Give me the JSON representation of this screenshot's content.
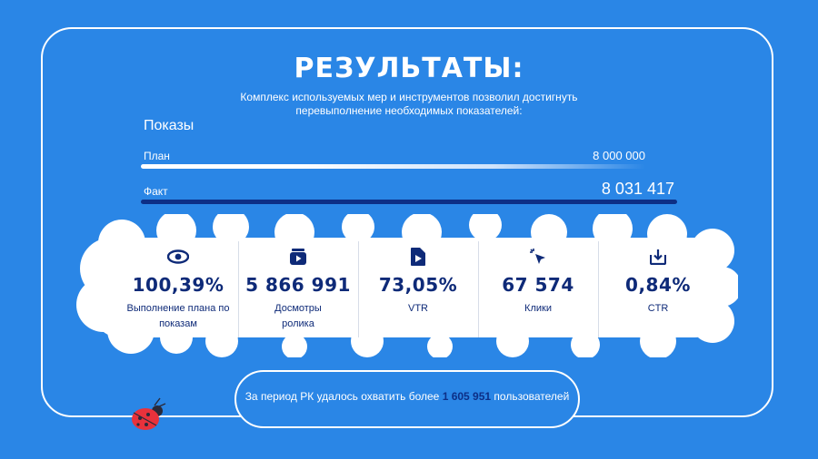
{
  "title": "РЕЗУЛЬТАТЫ:",
  "subtitle_line1": "Комплекс используемых мер и инструментов позволил достигнуть",
  "subtitle_line2": "перевыполнение необходимых показателей:",
  "impressions": {
    "label": "Показы",
    "plan_label": "План",
    "plan_value": "8 000 000",
    "fact_label": "Факт",
    "fact_value": "8 031 417"
  },
  "stats": [
    {
      "icon": "eye-icon",
      "value": "100,39%",
      "caption_line1": "Выполнение плана по",
      "caption_line2": "показам"
    },
    {
      "icon": "video-play-icon",
      "value": "5 866 991",
      "caption_line1": "Досмотры",
      "caption_line2": "ролика"
    },
    {
      "icon": "document-play-icon",
      "value": "73,05%",
      "caption_line1": "VTR",
      "caption_line2": ""
    },
    {
      "icon": "cursor-click-icon",
      "value": "67 574",
      "caption_line1": "Клики",
      "caption_line2": ""
    },
    {
      "icon": "download-icon",
      "value": "0,84%",
      "caption_line1": "CTR",
      "caption_line2": ""
    }
  ],
  "footer": {
    "text_before": "За период РК удалось охватить более",
    "highlight": "1 605 951",
    "text_after": "пользователей"
  },
  "colors": {
    "background": "#2a86e6",
    "accent_dark": "#0d2f86",
    "text_dark": "#0e2a78",
    "ladybug": "#e8323c"
  }
}
